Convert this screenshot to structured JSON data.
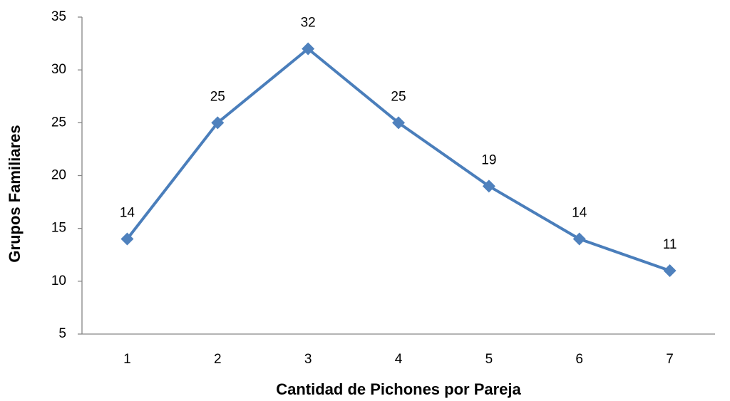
{
  "chart_data": {
    "type": "line",
    "x_label": "Cantidad de Pichones por Pareja",
    "y_label": "Grupos Familiares",
    "categories": [
      1,
      2,
      3,
      4,
      5,
      6,
      7
    ],
    "values": [
      14,
      25,
      32,
      25,
      19,
      14,
      11
    ],
    "color": "#4a7ebb",
    "ylim": [
      5,
      35
    ],
    "yticks": [
      5,
      10,
      15,
      20,
      25,
      30,
      35
    ],
    "grid": false
  }
}
